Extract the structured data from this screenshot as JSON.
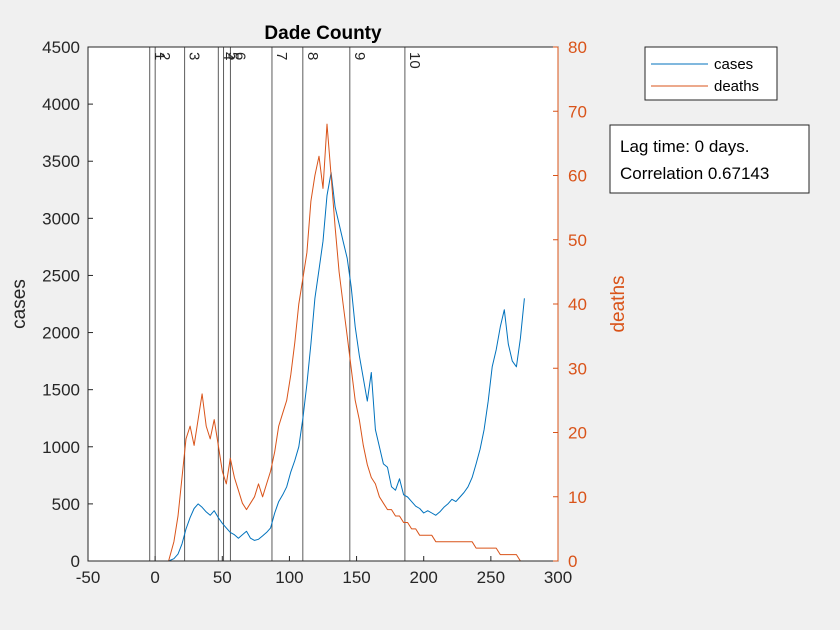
{
  "chart_data": {
    "type": "line",
    "title": "Dade County",
    "xlabel": "",
    "ylabel_left": "cases",
    "ylabel_right": "deaths",
    "xlim": [
      -50,
      300
    ],
    "ylim_left": [
      0,
      4500
    ],
    "ylim_right": [
      0,
      80
    ],
    "xticks": [
      -50,
      0,
      50,
      100,
      150,
      200,
      250,
      300
    ],
    "yticks_left": [
      0,
      500,
      1000,
      1500,
      2000,
      2500,
      3000,
      3500,
      4000,
      4500
    ],
    "yticks_right": [
      0,
      10,
      20,
      30,
      40,
      50,
      60,
      70,
      80
    ],
    "grid": false,
    "legend_position": "top-right outside",
    "colors": {
      "cases": "#0072bd",
      "deaths": "#d95319"
    },
    "events": [
      {
        "label": "1",
        "x": -4
      },
      {
        "label": "2",
        "x": 0
      },
      {
        "label": "3",
        "x": 22
      },
      {
        "label": "4",
        "x": 47
      },
      {
        "label": "5",
        "x": 51
      },
      {
        "label": "6",
        "x": 56
      },
      {
        "label": "7",
        "x": 87
      },
      {
        "label": "8",
        "x": 110
      },
      {
        "label": "9",
        "x": 145
      },
      {
        "label": "10",
        "x": 186
      }
    ],
    "series": [
      {
        "name": "cases",
        "axis": "left",
        "x": [
          10,
          14,
          17,
          20,
          23,
          26,
          29,
          32,
          35,
          38,
          41,
          44,
          47,
          50,
          53,
          56,
          59,
          62,
          65,
          68,
          71,
          74,
          77,
          80,
          83,
          86,
          89,
          92,
          95,
          98,
          101,
          104,
          107,
          110,
          113,
          116,
          119,
          122,
          125,
          128,
          131,
          134,
          137,
          140,
          143,
          146,
          149,
          152,
          155,
          158,
          161,
          164,
          167,
          170,
          173,
          176,
          179,
          182,
          185,
          188,
          191,
          194,
          197,
          200,
          203,
          206,
          209,
          212,
          215,
          218,
          221,
          224,
          227,
          230,
          233,
          236,
          239,
          242,
          245,
          248,
          251,
          254,
          257,
          260,
          263,
          266,
          269,
          272,
          275
        ],
        "values": [
          0,
          20,
          60,
          150,
          280,
          380,
          460,
          500,
          470,
          430,
          400,
          440,
          380,
          330,
          290,
          250,
          230,
          200,
          230,
          260,
          200,
          180,
          190,
          220,
          250,
          290,
          420,
          520,
          580,
          650,
          780,
          880,
          1000,
          1250,
          1550,
          1900,
          2300,
          2550,
          2800,
          3200,
          3400,
          3100,
          2950,
          2800,
          2650,
          2400,
          2050,
          1800,
          1600,
          1400,
          1650,
          1150,
          1000,
          850,
          820,
          650,
          620,
          720,
          580,
          560,
          520,
          480,
          460,
          420,
          440,
          420,
          400,
          430,
          470,
          500,
          540,
          520,
          560,
          600,
          650,
          730,
          850,
          980,
          1150,
          1400,
          1700,
          1850,
          2050,
          2200,
          1900,
          1750,
          1700,
          1950,
          2300
        ]
      },
      {
        "name": "deaths",
        "axis": "right",
        "x": [
          10,
          14,
          17,
          20,
          23,
          26,
          29,
          32,
          35,
          38,
          41,
          44,
          47,
          50,
          53,
          56,
          59,
          62,
          65,
          68,
          71,
          74,
          77,
          80,
          83,
          86,
          89,
          92,
          95,
          98,
          101,
          104,
          107,
          110,
          113,
          116,
          119,
          122,
          125,
          128,
          131,
          134,
          137,
          140,
          143,
          146,
          149,
          152,
          155,
          158,
          161,
          164,
          167,
          170,
          173,
          176,
          179,
          182,
          185,
          188,
          191,
          194,
          197,
          200,
          203,
          206,
          209,
          212,
          215,
          218,
          221,
          224,
          227,
          230,
          233,
          236,
          239,
          242,
          245,
          248,
          251,
          254,
          257,
          260,
          263,
          266,
          269,
          272,
          275
        ],
        "values": [
          0,
          3,
          7,
          13,
          19,
          21,
          18,
          22,
          26,
          21,
          19,
          22,
          18,
          14,
          12,
          16,
          13,
          11,
          9,
          8,
          9,
          10,
          12,
          10,
          12,
          14,
          17,
          21,
          23,
          25,
          29,
          34,
          40,
          44,
          48,
          56,
          60,
          63,
          58,
          68,
          60,
          52,
          45,
          40,
          35,
          30,
          25,
          22,
          18,
          15,
          13,
          12,
          10,
          9,
          8,
          8,
          7,
          7,
          6,
          6,
          5,
          5,
          4,
          4,
          4,
          4,
          3,
          3,
          3,
          3,
          3,
          3,
          3,
          3,
          3,
          3,
          2,
          2,
          2,
          2,
          2,
          2,
          1,
          1,
          1,
          1,
          1,
          0,
          0
        ]
      }
    ],
    "annotation": {
      "line1": "Lag time: 0 days.",
      "line2": "Correlation 0.67143"
    }
  }
}
